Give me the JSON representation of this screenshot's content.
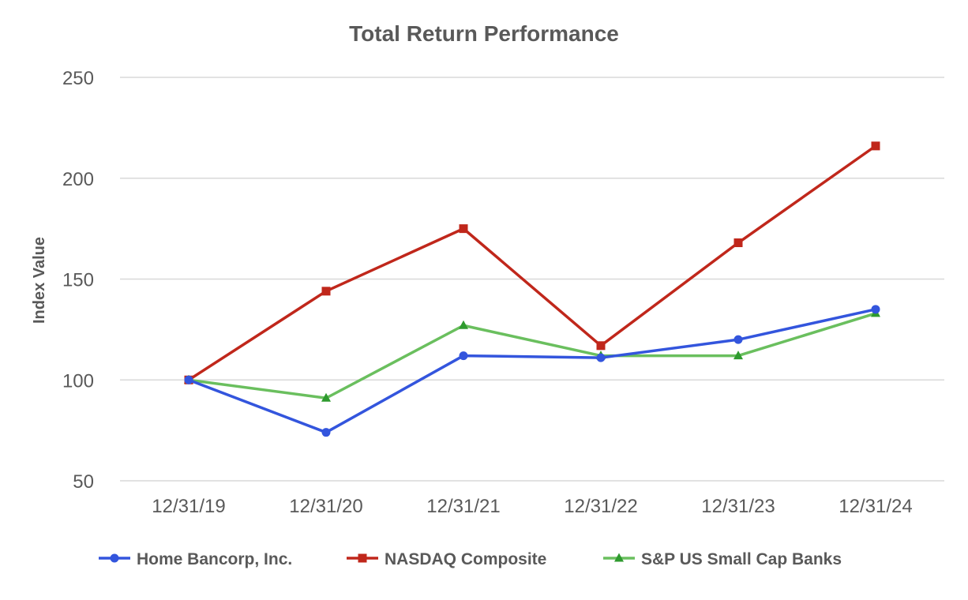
{
  "chart_data": {
    "type": "line",
    "title": "Total Return Performance",
    "xlabel": "",
    "ylabel": "Index Value",
    "ylim": [
      50,
      250
    ],
    "yticks": [
      50,
      100,
      150,
      200,
      250
    ],
    "grid": true,
    "legend_position": "bottom",
    "categories": [
      "12/31/19",
      "12/31/20",
      "12/31/21",
      "12/31/22",
      "12/31/23",
      "12/31/24"
    ],
    "series": [
      {
        "name": "Home Bancorp, Inc.",
        "color": "#3355dd",
        "marker": "circle",
        "values": [
          100,
          74,
          112,
          111,
          120,
          135
        ]
      },
      {
        "name": "NASDAQ Composite",
        "color": "#c0271b",
        "marker": "square",
        "values": [
          100,
          144,
          175,
          117,
          168,
          216
        ]
      },
      {
        "name": "S&P US Small Cap Banks",
        "color": "#6abf5e",
        "markerColor": "#2e9a2e",
        "marker": "triangle",
        "values": [
          100,
          91,
          127,
          112,
          112,
          133
        ]
      }
    ]
  }
}
